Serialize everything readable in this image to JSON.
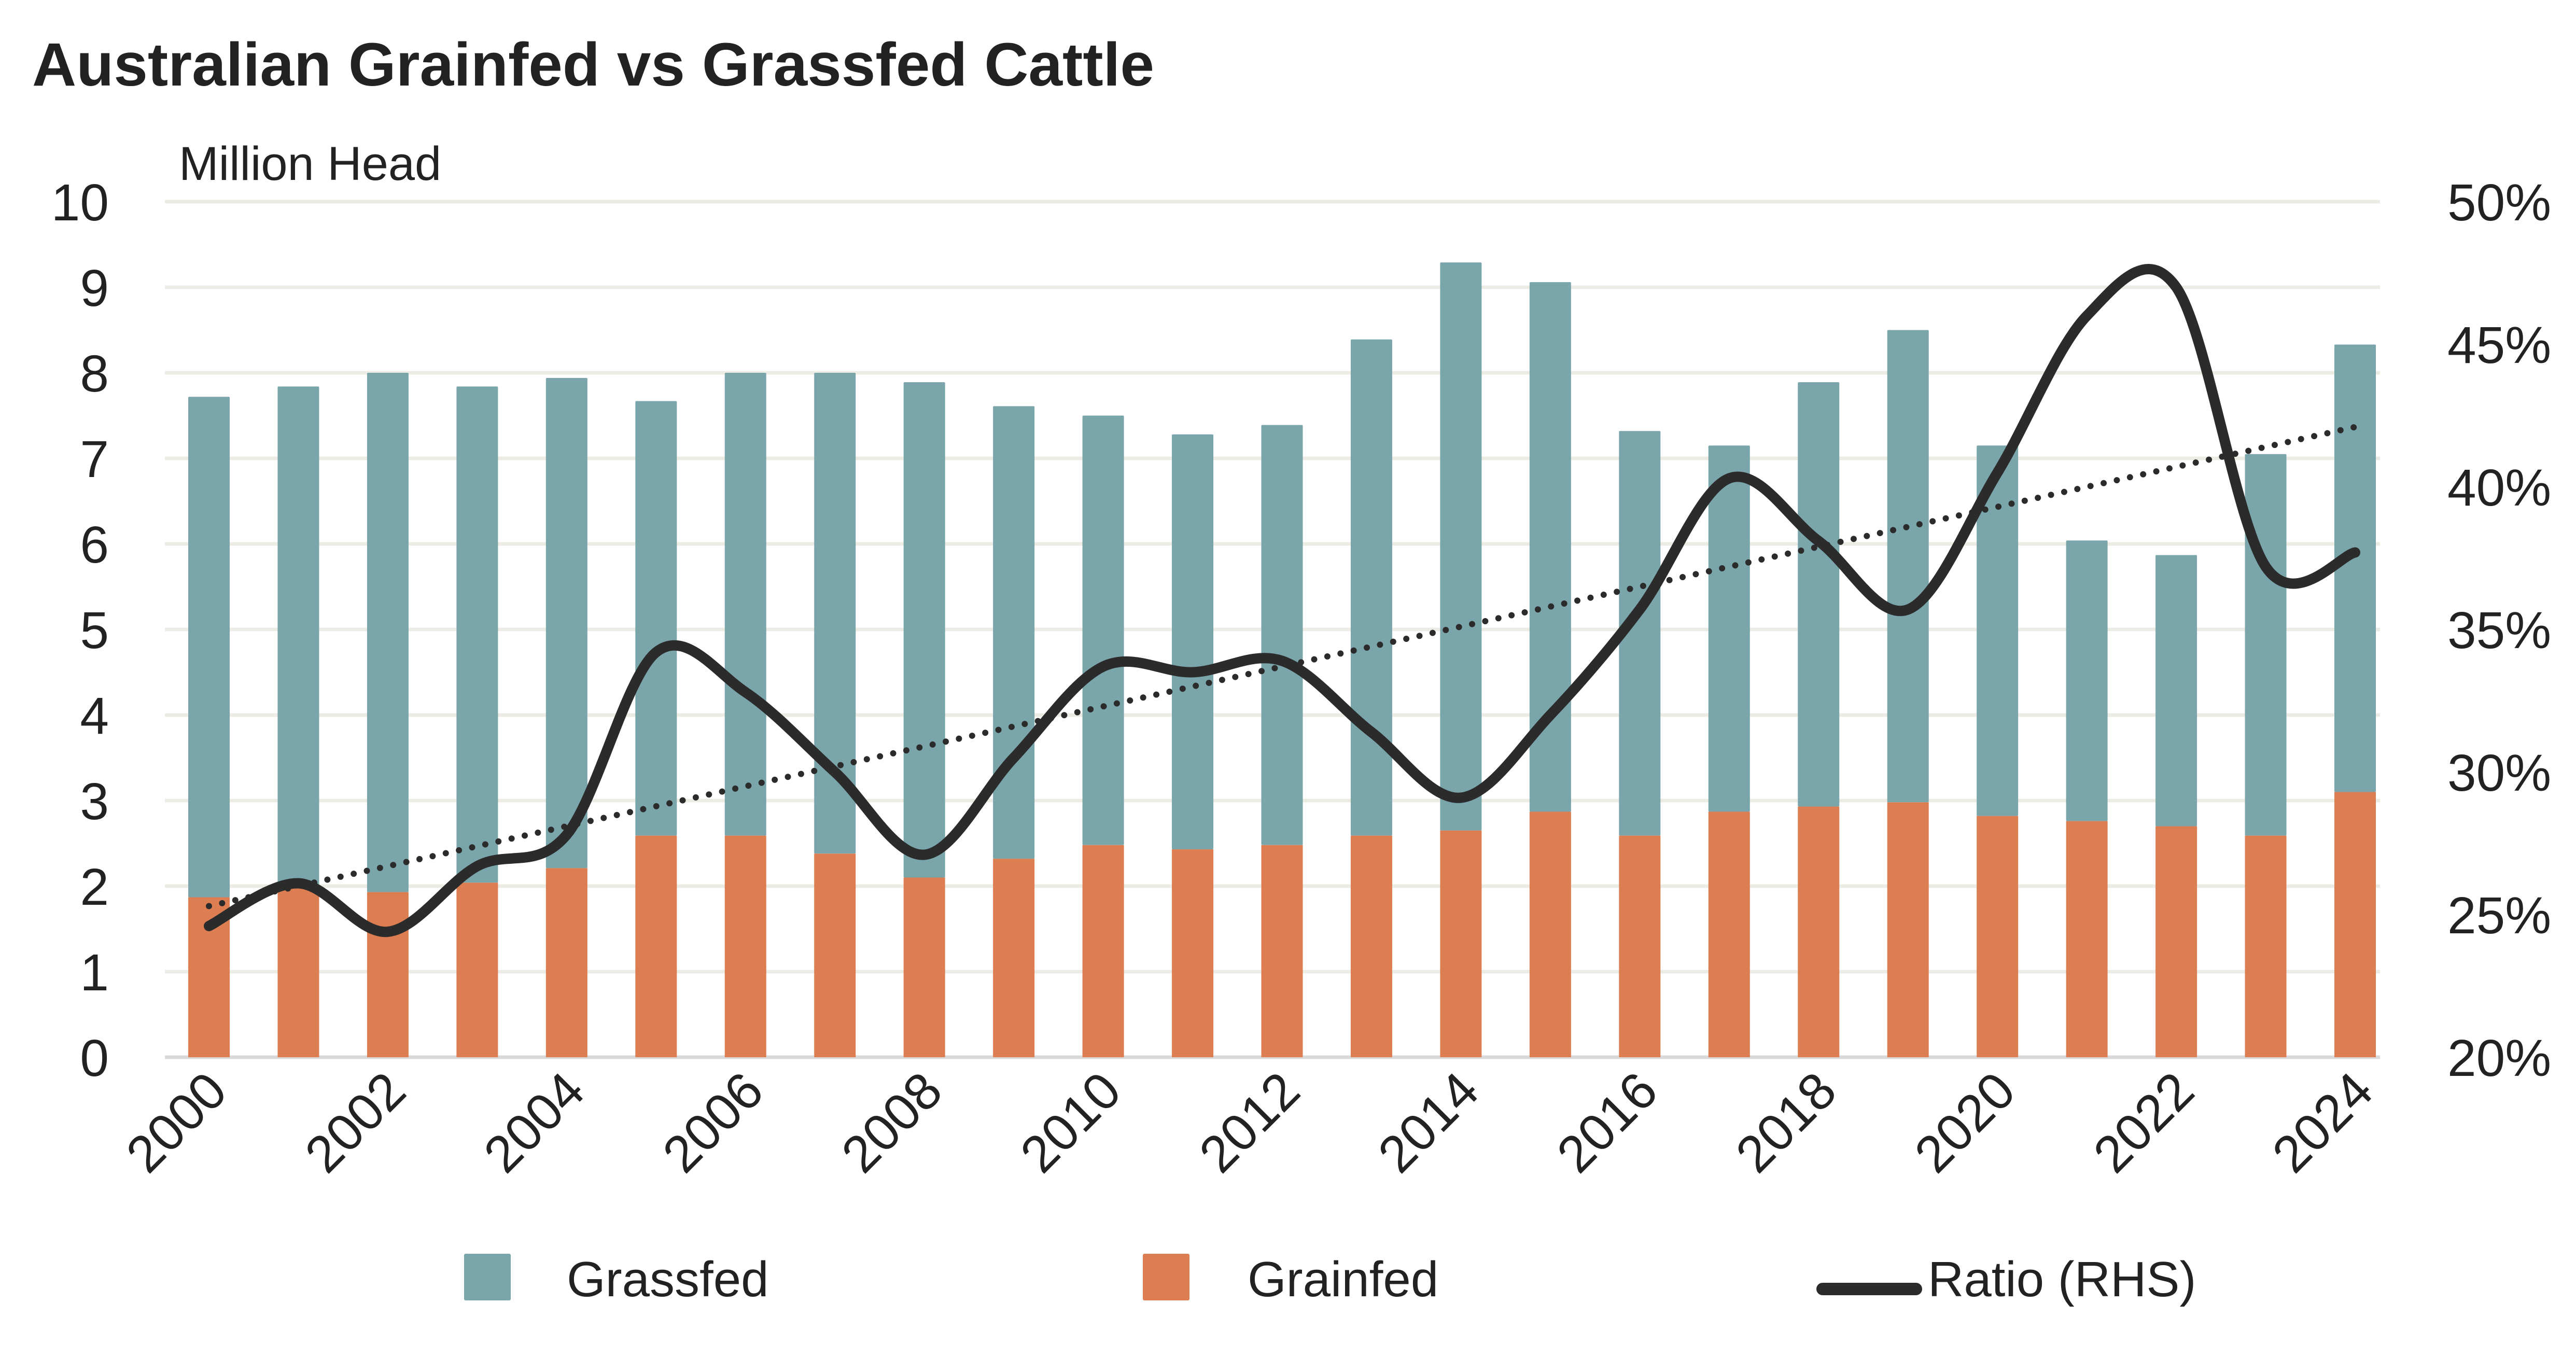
{
  "chart_data": {
    "type": "bar",
    "subtype": "stacked-bar-with-line",
    "title": "Australian Grainfed vs Grassfed Cattle",
    "ylabel": "Million Head",
    "y2label": "",
    "xlabel": "",
    "ylim": [
      0,
      10
    ],
    "y_ticks": [
      "0",
      "1",
      "2",
      "3",
      "4",
      "5",
      "6",
      "7",
      "8",
      "9",
      "10"
    ],
    "y2lim": [
      0.2,
      0.5
    ],
    "y2_ticks": [
      "20%",
      "25%",
      "30%",
      "35%",
      "40%",
      "45%",
      "50%"
    ],
    "grid": true,
    "legend_position": "bottom",
    "categories": [
      "2000",
      "2001",
      "2002",
      "2003",
      "2004",
      "2005",
      "2006",
      "2007",
      "2008",
      "2009",
      "2010",
      "2011",
      "2012",
      "2013",
      "2014",
      "2015",
      "2016",
      "2017",
      "2018",
      "2019",
      "2020",
      "2021",
      "2022",
      "2023",
      "2024"
    ],
    "x_tick_labels": [
      "2000",
      "2002",
      "2004",
      "2006",
      "2008",
      "2010",
      "2012",
      "2014",
      "2016",
      "2018",
      "2020",
      "2022",
      "2024"
    ],
    "series": [
      {
        "name": "Grainfed",
        "kind": "bar-stacked",
        "axis": "left",
        "color": "#dc7d52",
        "values": [
          1.87,
          2.0,
          1.93,
          2.04,
          2.21,
          2.59,
          2.59,
          2.38,
          2.1,
          2.32,
          2.48,
          2.43,
          2.48,
          2.59,
          2.65,
          2.87,
          2.59,
          2.87,
          2.93,
          2.98,
          2.82,
          2.76,
          2.7,
          2.59,
          3.1
        ]
      },
      {
        "name": "Grassfed",
        "kind": "bar-stacked",
        "axis": "left",
        "color": "#7aa5ab",
        "values": [
          5.85,
          5.84,
          6.07,
          5.8,
          5.73,
          5.08,
          5.41,
          5.62,
          5.79,
          5.29,
          5.02,
          4.85,
          4.91,
          5.8,
          6.64,
          6.19,
          4.73,
          4.28,
          4.96,
          5.52,
          4.33,
          3.28,
          3.17,
          4.46,
          5.23
        ]
      },
      {
        "name": "Ratio (RHS)",
        "kind": "line-smooth",
        "axis": "right",
        "color": "#2b2b2b",
        "values": [
          0.246,
          0.261,
          0.244,
          0.267,
          0.278,
          0.342,
          0.328,
          0.3,
          0.271,
          0.305,
          0.337,
          0.335,
          0.339,
          0.314,
          0.291,
          0.32,
          0.357,
          0.403,
          0.381,
          0.357,
          0.405,
          0.46,
          0.47,
          0.372,
          0.377
        ]
      },
      {
        "name": "Linear trend (Ratio)",
        "kind": "trendline-dotted",
        "axis": "right",
        "color": "#2b2b2b",
        "values": [
          0.253,
          0.26,
          0.267,
          0.274,
          0.281,
          0.288,
          0.295,
          0.302,
          0.309,
          0.316,
          0.323,
          0.33,
          0.337,
          0.344,
          0.351,
          0.358,
          0.365,
          0.372,
          0.379,
          0.386,
          0.393,
          0.4,
          0.407,
          0.414,
          0.421
        ]
      }
    ],
    "legend": [
      {
        "label": "Grassfed",
        "swatch": "square",
        "color": "#7aa5ab"
      },
      {
        "label": "Grainfed",
        "swatch": "square",
        "color": "#dc7d52"
      },
      {
        "label": "Ratio (RHS)",
        "swatch": "line",
        "color": "#2b2b2b"
      }
    ]
  }
}
